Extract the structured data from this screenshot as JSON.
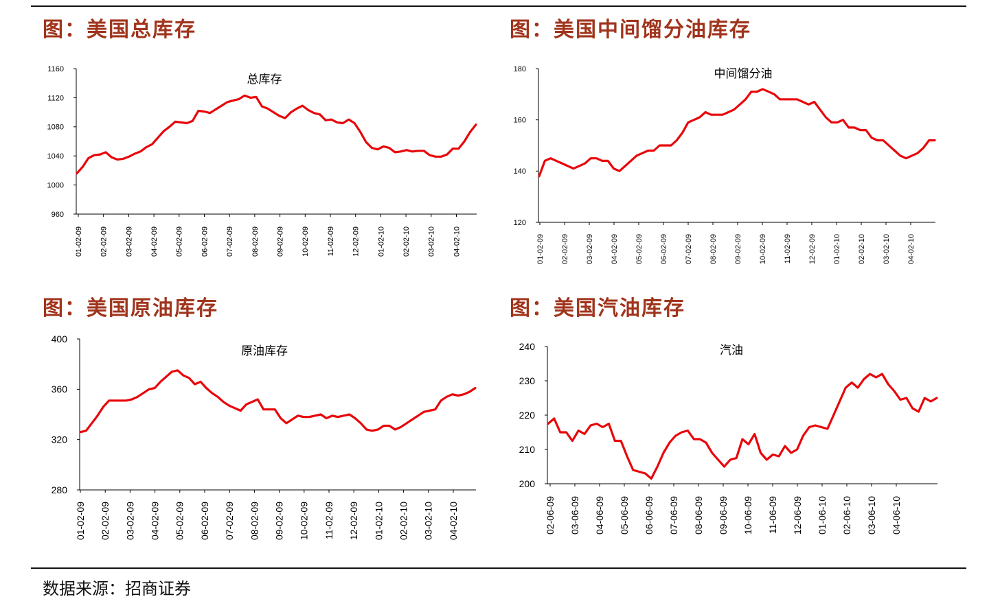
{
  "titles": [
    "图：美国总库存",
    "图：美国中间馏分油库存",
    "图：美国原油库存",
    "图：美国汽油库存"
  ],
  "source": "数据来源：招商证券",
  "colors": {
    "line": "#e8060a",
    "title": "#a0341c",
    "axis": "#000000"
  },
  "chart_data": [
    {
      "type": "line",
      "title": "总库存",
      "ylim": [
        960,
        1160
      ],
      "yticks": [
        960,
        1000,
        1040,
        1080,
        1120,
        1160
      ],
      "xticks": [
        "01-02-09",
        "02-02-09",
        "03-02-09",
        "04-02-09",
        "05-02-09",
        "06-02-09",
        "07-02-09",
        "08-02-09",
        "09-02-09",
        "10-02-09",
        "11-02-09",
        "12-02-09",
        "01-02-10",
        "02-02-10",
        "03-02-10",
        "04-02-10"
      ],
      "values": [
        1016,
        1025,
        1037,
        1041,
        1042,
        1045,
        1038,
        1035,
        1036,
        1039,
        1043,
        1046,
        1052,
        1056,
        1065,
        1074,
        1080,
        1087,
        1086,
        1085,
        1088,
        1102,
        1101,
        1099,
        1104,
        1109,
        1114,
        1116,
        1118,
        1123,
        1120,
        1121,
        1108,
        1105,
        1100,
        1095,
        1092,
        1100,
        1105,
        1109,
        1103,
        1099,
        1097,
        1089,
        1090,
        1086,
        1085,
        1090,
        1085,
        1073,
        1059,
        1051,
        1049,
        1053,
        1051,
        1045,
        1046,
        1048,
        1046,
        1047,
        1047,
        1041,
        1039,
        1039,
        1042,
        1050,
        1050,
        1060,
        1073,
        1083
      ]
    },
    {
      "type": "line",
      "title": "中间馏分油",
      "ylim": [
        120,
        180
      ],
      "yticks": [
        120,
        140,
        160,
        180
      ],
      "xticks": [
        "01-02-09",
        "02-02-09",
        "03-02-09",
        "04-02-09",
        "05-02-09",
        "06-02-09",
        "07-02-09",
        "08-02-09",
        "09-02-09",
        "10-02-09",
        "11-02-09",
        "12-02-09",
        "01-02-10",
        "02-02-10",
        "03-02-10",
        "04-02-10"
      ],
      "values": [
        138,
        144,
        145,
        144,
        143,
        142,
        141,
        142,
        143,
        145,
        145,
        144,
        144,
        141,
        140,
        142,
        144,
        146,
        147,
        148,
        148,
        150,
        150,
        150,
        152,
        155,
        159,
        160,
        161,
        163,
        162,
        162,
        162,
        163,
        164,
        166,
        168,
        171,
        171,
        172,
        171,
        170,
        168,
        168,
        168,
        168,
        167,
        166,
        167,
        164,
        161,
        159,
        159,
        160,
        157,
        157,
        156,
        156,
        153,
        152,
        152,
        150,
        148,
        146,
        145,
        146,
        147,
        149,
        152,
        152
      ]
    },
    {
      "type": "line",
      "title": "原油库存",
      "ylim": [
        280,
        400
      ],
      "yticks": [
        280,
        320,
        360,
        400
      ],
      "xticks": [
        "01-02-09",
        "02-02-09",
        "03-02-09",
        "04-02-09",
        "05-02-09",
        "06-02-09",
        "07-02-09",
        "08-02-09",
        "09-02-09",
        "10-02-09",
        "11-02-09",
        "12-02-09",
        "01-02-10",
        "02-02-10",
        "03-02-10",
        "04-02-10"
      ],
      "values": [
        326,
        327,
        333,
        339,
        346,
        351,
        351,
        351,
        351,
        352,
        354,
        357,
        360,
        361,
        366,
        370,
        374,
        375,
        371,
        369,
        364,
        366,
        361,
        357,
        354,
        350,
        347,
        345,
        343,
        348,
        350,
        352,
        344,
        344,
        344,
        337,
        333,
        336,
        339,
        338,
        338,
        339,
        340,
        337,
        339,
        338,
        339,
        340,
        337,
        333,
        328,
        327,
        328,
        331,
        331,
        328,
        330,
        333,
        336,
        339,
        342,
        343,
        344,
        351,
        354,
        356,
        355,
        356,
        358,
        361
      ]
    },
    {
      "type": "line",
      "title": "汽油",
      "ylim": [
        200,
        240
      ],
      "yticks": [
        200,
        210,
        220,
        230,
        240
      ],
      "xticks": [
        "02-06-09",
        "03-06-09",
        "04-06-09",
        "05-06-09",
        "06-06-09",
        "07-06-09",
        "08-06-09",
        "09-06-09",
        "10-06-09",
        "11-06-09",
        "12-06-09",
        "01-06-10",
        "02-06-10",
        "03-06-10",
        "04-06-10"
      ],
      "values": [
        217.5,
        219,
        215,
        215,
        212.5,
        215.5,
        214.5,
        217,
        217.5,
        216.5,
        217.5,
        212.5,
        212.5,
        208,
        204,
        203.5,
        203,
        201.5,
        205,
        209,
        212,
        214,
        215,
        215.5,
        213,
        213,
        212,
        209,
        207,
        205,
        207,
        207.5,
        213,
        211.5,
        214.5,
        209,
        207,
        208.5,
        208,
        211,
        209,
        210,
        214,
        216.5,
        217,
        216.5,
        216,
        220,
        224,
        228,
        229.5,
        228,
        230.5,
        232,
        231,
        232,
        229,
        227,
        224.5,
        225,
        222,
        221,
        225,
        224,
        225
      ]
    }
  ]
}
